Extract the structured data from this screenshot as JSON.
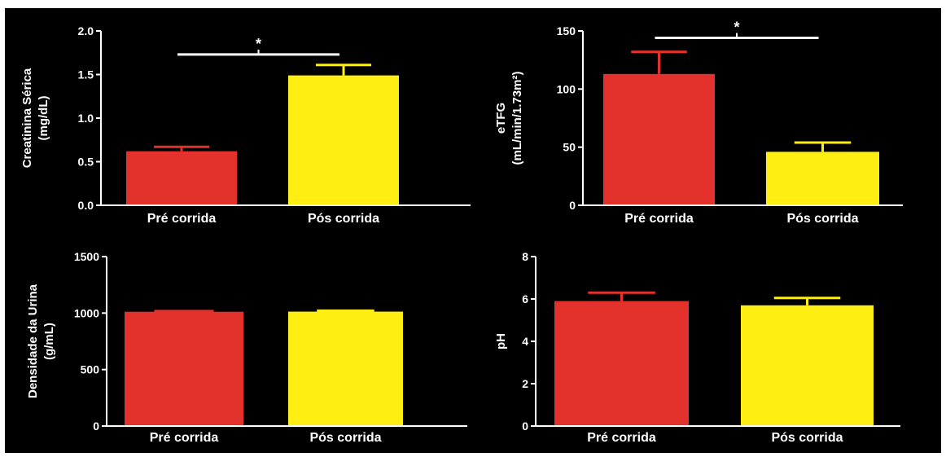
{
  "colors": {
    "background": "#000000",
    "axis": "#ffffff",
    "pre": "#e3322b",
    "pos": "#ffee12"
  },
  "chart_data": [
    {
      "type": "bar",
      "categories": [
        "Pré corrida",
        "Pós corrida"
      ],
      "values": [
        0.62,
        1.49
      ],
      "errors": [
        0.05,
        0.12
      ],
      "ylabel_lines": [
        "Creatinina Sérica",
        "(mg/dL)"
      ],
      "ylim": [
        0,
        2.0
      ],
      "yticks": [
        "0.0",
        "0.5",
        "1.0",
        "1.5",
        "2.0"
      ],
      "ytick_values": [
        0,
        0.5,
        1.0,
        1.5,
        2.0
      ],
      "significance": {
        "mark": "*",
        "y": 1.73
      }
    },
    {
      "type": "bar",
      "categories": [
        "Pré corrida",
        "Pós corrida"
      ],
      "values": [
        113,
        46
      ],
      "errors": [
        19,
        8
      ],
      "ylabel_lines": [
        "eTFG",
        "(mL/min/1.73m²)"
      ],
      "ylim": [
        0,
        150
      ],
      "yticks": [
        "0",
        "50",
        "100",
        "150"
      ],
      "ytick_values": [
        0,
        50,
        100,
        150
      ],
      "significance": {
        "mark": "*",
        "y": 144
      }
    },
    {
      "type": "bar",
      "categories": [
        "Pré corrida",
        "Pós corrida"
      ],
      "values": [
        1012,
        1013
      ],
      "errors": [
        6,
        8
      ],
      "ylabel_lines": [
        "Densidade da Urina",
        "(g/mL)"
      ],
      "ylim": [
        0,
        1500
      ],
      "yticks": [
        "0",
        "500",
        "1000",
        "1500"
      ],
      "ytick_values": [
        0,
        500,
        1000,
        1500
      ],
      "significance": null
    },
    {
      "type": "bar",
      "categories": [
        "Pré corrida",
        "Pós corrida"
      ],
      "values": [
        5.9,
        5.7
      ],
      "errors": [
        0.4,
        0.35
      ],
      "ylabel_lines": [
        "pH"
      ],
      "ylim": [
        0,
        8
      ],
      "yticks": [
        "0",
        "2",
        "4",
        "6",
        "8"
      ],
      "ytick_values": [
        0,
        2,
        4,
        6,
        8
      ],
      "significance": null
    }
  ]
}
